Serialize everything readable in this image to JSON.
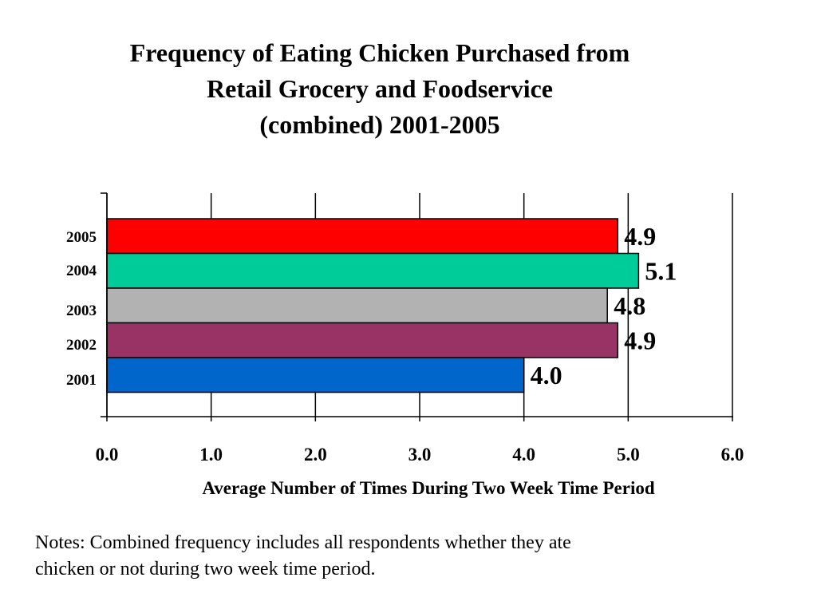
{
  "title_lines": [
    "Frequency of Eating Chicken Purchased from",
    "Retail Grocery and Foodservice",
    "(combined) 2001-2005"
  ],
  "notes_lines": [
    "Notes:  Combined  frequency includes all respondents whether they ate",
    "chicken or not during two week time period."
  ],
  "chart_data": {
    "type": "bar",
    "orientation": "horizontal",
    "title": "Frequency of Eating Chicken Purchased from Retail Grocery and Foodservice (combined) 2001-2005",
    "xlabel": "Average Number of Times During Two Week Time Period",
    "ylabel": "",
    "xlim": [
      0,
      6
    ],
    "xticks": [
      "0.0",
      "1.0",
      "2.0",
      "3.0",
      "4.0",
      "5.0",
      "6.0"
    ],
    "grid": "vertical",
    "categories": [
      "2005",
      "2004",
      "2003",
      "2002",
      "2001"
    ],
    "values": [
      4.9,
      5.1,
      4.8,
      4.9,
      4.0
    ],
    "value_labels": [
      "4.9",
      "5.1",
      "4.8",
      "4.9",
      "4.0"
    ],
    "colors": [
      "#ff0000",
      "#00cc99",
      "#b2b2b2",
      "#993366",
      "#0066cc"
    ]
  }
}
